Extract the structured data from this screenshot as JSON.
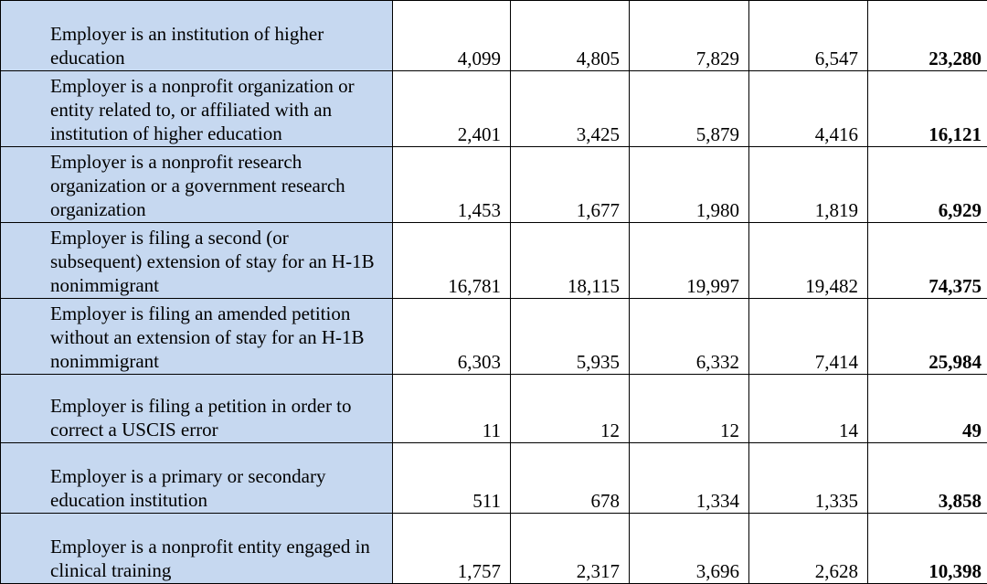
{
  "table": {
    "rows": [
      {
        "label": "Employer is an institution of higher education",
        "values": [
          "4,099",
          "4,805",
          "7,829",
          "6,547"
        ],
        "total": "23,280"
      },
      {
        "label": "Employer is a nonprofit organization or entity related to, or affiliated with an institution of higher education",
        "values": [
          "2,401",
          "3,425",
          "5,879",
          "4,416"
        ],
        "total": "16,121"
      },
      {
        "label": "Employer is a nonprofit research organization or a government research organization",
        "values": [
          "1,453",
          "1,677",
          "1,980",
          "1,819"
        ],
        "total": "6,929"
      },
      {
        "label": "Employer is filing a second (or subsequent) extension of stay for an H-1B nonimmigrant",
        "values": [
          "16,781",
          "18,115",
          "19,997",
          "19,482"
        ],
        "total": "74,375"
      },
      {
        "label": "Employer is filing an amended petition without an extension of stay for an H-1B nonimmigrant",
        "values": [
          "6,303",
          "5,935",
          "6,332",
          "7,414"
        ],
        "total": "25,984"
      },
      {
        "label": "Employer is filing a petition in order to correct a USCIS error",
        "values": [
          "11",
          "12",
          "12",
          "14"
        ],
        "total": "49"
      },
      {
        "label": "Employer is a primary or secondary education institution",
        "values": [
          "511",
          "678",
          "1,334",
          "1,335"
        ],
        "total": "3,858"
      },
      {
        "label": "Employer is a nonprofit entity engaged in clinical training",
        "values": [
          "1,757",
          "2,317",
          "3,696",
          "2,628"
        ],
        "total": "10,398"
      }
    ],
    "colors": {
      "label_background": "#c6d8f0",
      "border": "#000000"
    }
  }
}
